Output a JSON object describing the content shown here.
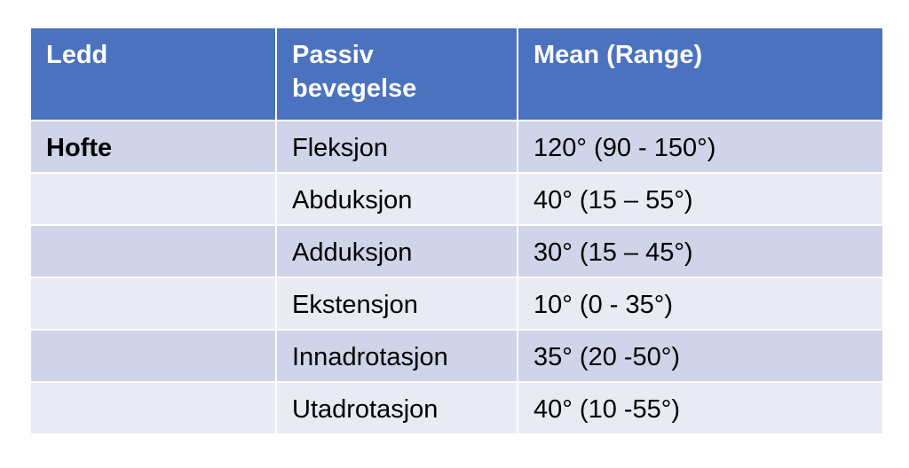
{
  "table": {
    "columns": [
      {
        "label": "Ledd"
      },
      {
        "label": "Passiv\nbevegelse"
      },
      {
        "label": "Mean (Range)"
      }
    ],
    "rows": [
      {
        "ledd": "Hofte",
        "passiv": "Fleksjon",
        "mean": "120° (90 - 150°)"
      },
      {
        "ledd": "",
        "passiv": "Abduksjon",
        "mean": "40° (15 – 55°)"
      },
      {
        "ledd": "",
        "passiv": "Adduksjon",
        "mean": "30° (15 – 45°)"
      },
      {
        "ledd": "",
        "passiv": "Ekstensjon",
        "mean": "10° (0 - 35°)"
      },
      {
        "ledd": "",
        "passiv": "Innadrotasjon",
        "mean": "35° (20 -50°)"
      },
      {
        "ledd": "",
        "passiv": "Utadrotasjon",
        "mean": "40° (10 -55°)"
      }
    ],
    "colors": {
      "header_bg": "#4B72BE",
      "header_text": "#FFFFFF",
      "row_odd_bg": "#CFD4E8",
      "row_even_bg": "#E9EBF4",
      "body_text": "#000000",
      "border": "#FFFFFF"
    }
  }
}
